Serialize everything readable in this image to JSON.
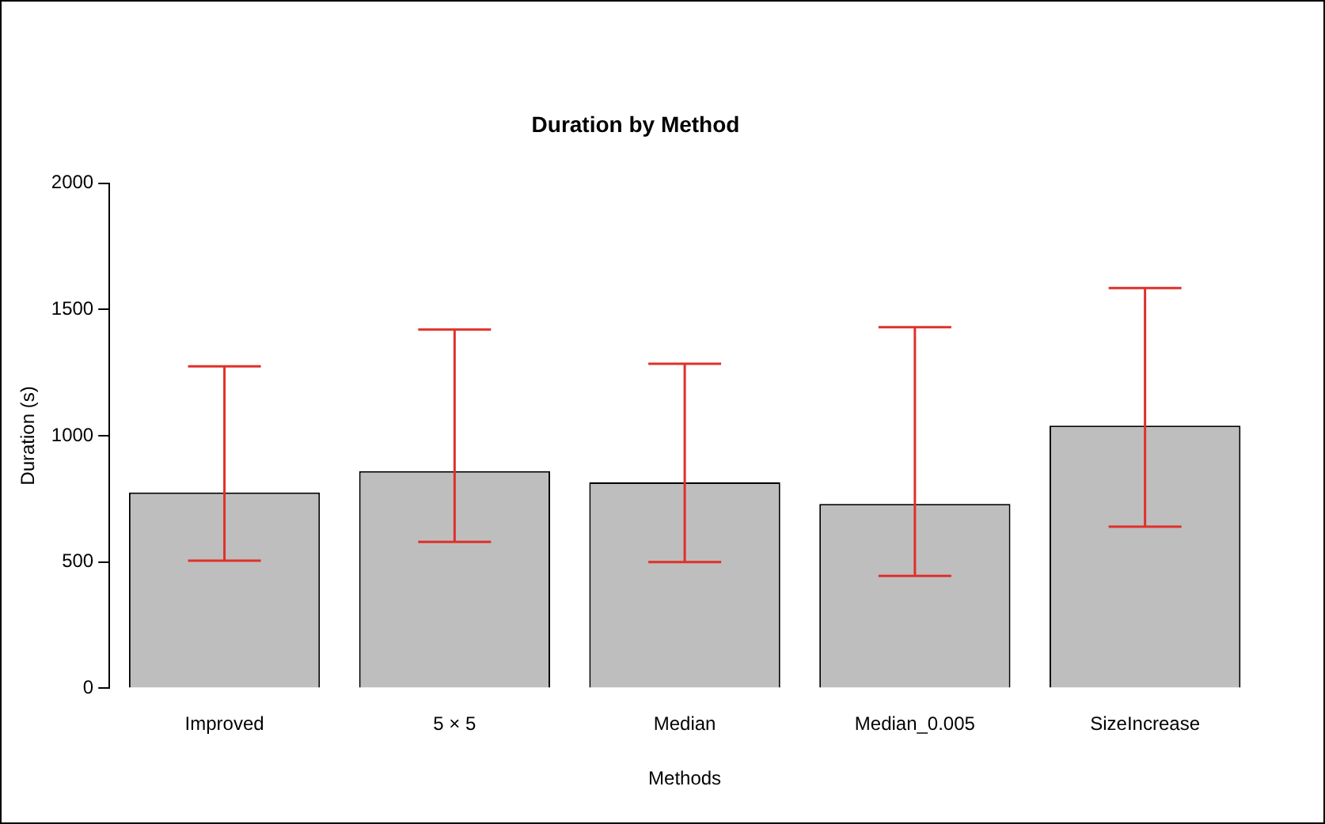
{
  "chart_data": {
    "type": "bar",
    "title": "Duration by Method",
    "xlabel": "Methods",
    "ylabel": "Duration (s)",
    "categories": [
      "Improved",
      "5 × 5",
      "Median",
      "Median_0.005",
      "SizeIncrease"
    ],
    "values": [
      775,
      860,
      815,
      730,
      1040
    ],
    "errors": [
      [
        505,
        1275
      ],
      [
        580,
        1420
      ],
      [
        500,
        1285
      ],
      [
        445,
        1430
      ],
      [
        640,
        1585
      ]
    ],
    "color": "#bebebe",
    "ylim": [
      0,
      2000
    ],
    "yticks": [
      0,
      500,
      1000,
      1500,
      2000
    ],
    "grid": false,
    "legend": false
  }
}
